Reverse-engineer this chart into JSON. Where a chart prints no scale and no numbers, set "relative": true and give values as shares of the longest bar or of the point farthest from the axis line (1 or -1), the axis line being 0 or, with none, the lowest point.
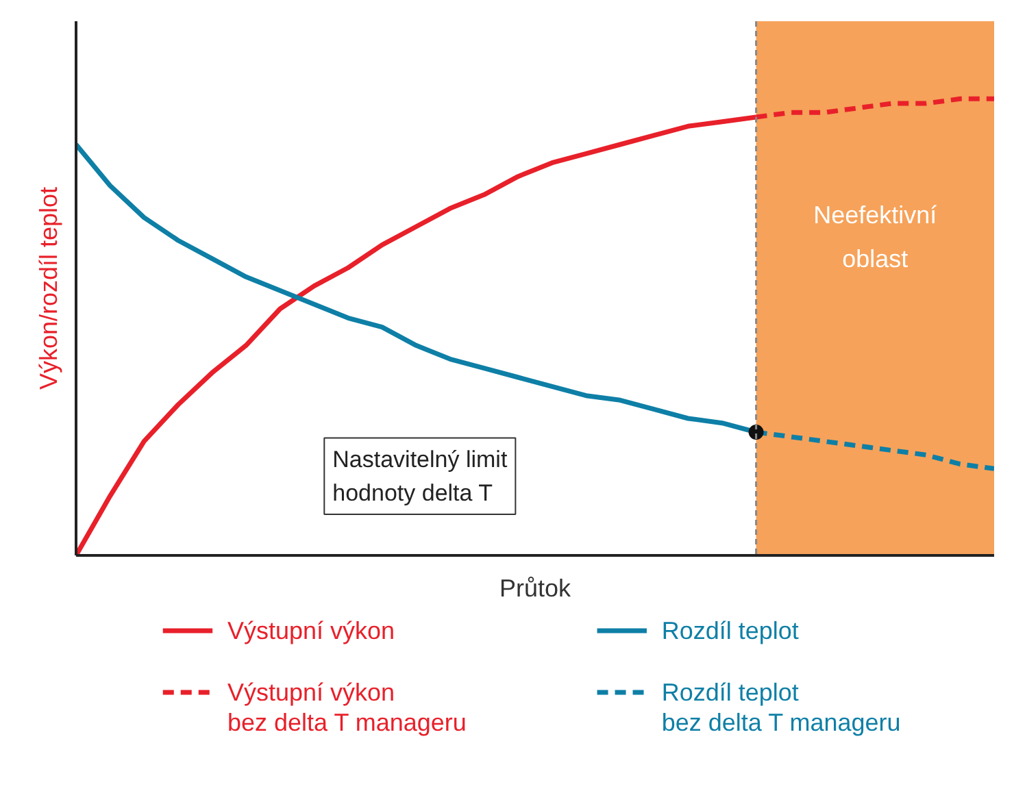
{
  "chart_data": {
    "type": "line",
    "relative": true,
    "xlabel": "Průtok",
    "ylabel": "Výkon/rozdíl teplot",
    "categories": [
      null,
      null,
      null,
      null,
      null,
      null,
      null,
      null,
      null,
      null,
      null,
      null,
      null,
      null,
      null,
      null,
      null,
      null,
      null,
      null,
      null,
      null,
      null,
      null,
      null,
      null,
      null,
      null
    ],
    "series": [
      {
        "name": "Výstupní výkon",
        "color": "#e8202a",
        "line_style": "solid",
        "values": [
          0,
          0.13,
          0.25,
          0.33,
          0.4,
          0.46,
          0.54,
          0.59,
          0.63,
          0.68,
          0.72,
          0.76,
          0.79,
          0.83,
          0.86,
          0.88,
          0.9,
          0.92,
          0.94,
          0.95,
          0.96,
          null,
          null,
          null,
          null,
          null,
          null,
          null
        ]
      },
      {
        "name": "Výstupní výkon bez delta T manageru",
        "color": "#e8202a",
        "line_style": "dashed",
        "values": [
          null,
          null,
          null,
          null,
          null,
          null,
          null,
          null,
          null,
          null,
          null,
          null,
          null,
          null,
          null,
          null,
          null,
          null,
          null,
          null,
          0.96,
          0.97,
          0.97,
          0.98,
          0.99,
          0.99,
          1.0,
          1.0
        ]
      },
      {
        "name": "Rozdíl teplot",
        "color": "#0e7fa6",
        "line_style": "solid",
        "values": [
          0.9,
          0.81,
          0.74,
          0.69,
          0.65,
          0.61,
          0.58,
          0.55,
          0.52,
          0.5,
          0.46,
          0.43,
          0.41,
          0.39,
          0.37,
          0.35,
          0.34,
          0.32,
          0.3,
          0.29,
          0.27,
          null,
          null,
          null,
          null,
          null,
          null,
          null
        ]
      },
      {
        "name": "Rozdíl teplot bez delta T manageru",
        "color": "#0e7fa6",
        "line_style": "dashed",
        "values": [
          null,
          null,
          null,
          null,
          null,
          null,
          null,
          null,
          null,
          null,
          null,
          null,
          null,
          null,
          null,
          null,
          null,
          null,
          null,
          null,
          0.27,
          0.26,
          0.25,
          0.24,
          0.23,
          0.22,
          0.2,
          0.19
        ]
      }
    ],
    "annotations": [
      "Neefektivní oblast",
      "Nastavitelný limit hodnoty delta T"
    ],
    "legend": "bottom"
  }
}
